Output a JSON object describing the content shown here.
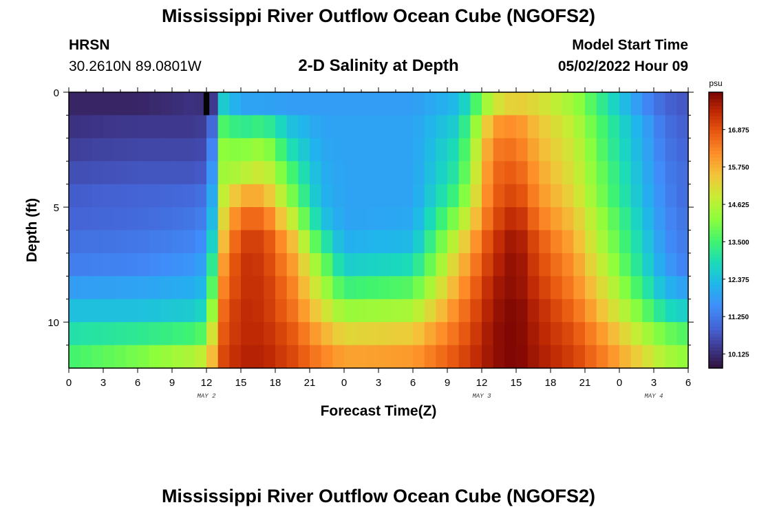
{
  "header": {
    "title": "Mississippi River Outflow Ocean Cube (NGOFS2)",
    "station": "HRSN",
    "coords": "30.2610N  89.0801W",
    "subtitle": "2-D Salinity at Depth",
    "model_start_label": "Model Start Time",
    "model_start_value": "05/02/2022 Hour 09"
  },
  "footer": {
    "title": "Mississippi River Outflow Ocean Cube (NGOFS2)"
  },
  "colors": {
    "background": "#ffffff",
    "axis": "#000000"
  },
  "chart_data": {
    "type": "heatmap",
    "title": "2-D Salinity at Depth",
    "xlabel": "Forecast Time(Z)",
    "ylabel": "Depth (ft)",
    "x_ticks": [
      "0",
      "3",
      "6",
      "9",
      "12",
      "15",
      "18",
      "21",
      "0",
      "3",
      "6",
      "9",
      "12",
      "15",
      "18",
      "21",
      "0",
      "3",
      "6"
    ],
    "x_range_hours": [
      0,
      54
    ],
    "date_labels": [
      {
        "text": "MAY 2",
        "hour": 12
      },
      {
        "text": "MAY 3",
        "hour": 36
      },
      {
        "text": "MAY 4",
        "hour": 51
      }
    ],
    "y_ticks": [
      "0",
      "5",
      "10"
    ],
    "y_range_ft": [
      0,
      12
    ],
    "colorbar": {
      "unit": "psu",
      "min": 9.7,
      "max": 18.0,
      "ticks": [
        "16.875",
        "15.750",
        "14.625",
        "13.500",
        "12.375",
        "11.250",
        "10.125"
      ]
    },
    "depth_levels_ft": [
      0.5,
      1.5,
      2.5,
      3.5,
      4.5,
      5.5,
      6.5,
      7.5,
      8.5,
      9.5,
      10.5,
      11.5
    ],
    "time_knots_hours": [
      0,
      6,
      11,
      12,
      12.5,
      13.5,
      15,
      17,
      19.5,
      22,
      24,
      30,
      34,
      37,
      39,
      41,
      44,
      47,
      50,
      52,
      54
    ],
    "salinity": [
      [
        10.0,
        10.0,
        10.2,
        10.1,
        10.3,
        12.6,
        11.9,
        11.9,
        11.8,
        11.8,
        11.8,
        11.8,
        12.3,
        14.9,
        15.4,
        15.1,
        14.4,
        13.0,
        11.6,
        10.9,
        10.7
      ],
      [
        10.2,
        10.3,
        10.3,
        10.4,
        11.0,
        13.6,
        13.2,
        13.4,
        12.4,
        11.9,
        11.9,
        11.9,
        12.7,
        16.0,
        16.2,
        15.5,
        14.7,
        13.3,
        12.0,
        11.1,
        10.8
      ],
      [
        10.4,
        10.5,
        10.5,
        10.6,
        11.4,
        14.2,
        14.1,
        14.4,
        12.9,
        12.0,
        11.9,
        11.9,
        13.0,
        16.4,
        16.5,
        15.7,
        14.9,
        13.4,
        12.1,
        11.2,
        10.9
      ],
      [
        10.6,
        10.7,
        10.7,
        10.8,
        11.7,
        14.4,
        14.6,
        15.0,
        13.5,
        12.1,
        11.9,
        11.9,
        13.2,
        16.6,
        16.8,
        15.9,
        15.0,
        13.6,
        12.2,
        11.3,
        11.0
      ],
      [
        10.8,
        10.9,
        11.0,
        11.2,
        12.0,
        14.8,
        15.8,
        15.8,
        14.0,
        12.2,
        11.9,
        11.9,
        13.6,
        16.7,
        17.1,
        16.1,
        15.2,
        13.7,
        12.3,
        11.4,
        11.0
      ],
      [
        10.9,
        11.0,
        11.2,
        11.4,
        12.3,
        15.2,
        16.6,
        16.6,
        14.8,
        12.5,
        11.9,
        12.0,
        14.3,
        16.9,
        17.5,
        16.4,
        15.5,
        14.0,
        12.5,
        11.5,
        11.1
      ],
      [
        11.1,
        11.2,
        11.4,
        11.7,
        12.7,
        15.6,
        17.1,
        17.1,
        15.6,
        13.3,
        12.1,
        12.3,
        15.0,
        17.2,
        17.8,
        16.8,
        15.8,
        14.2,
        12.7,
        11.6,
        11.2
      ],
      [
        11.3,
        11.4,
        11.7,
        12.0,
        13.2,
        16.0,
        17.3,
        17.2,
        16.0,
        14.1,
        12.6,
        12.9,
        15.5,
        17.4,
        17.9,
        17.0,
        16.1,
        14.5,
        12.9,
        11.8,
        11.3
      ],
      [
        11.8,
        11.9,
        12.1,
        12.4,
        13.7,
        16.3,
        17.3,
        17.3,
        16.3,
        14.6,
        13.4,
        13.7,
        15.9,
        17.6,
        17.9,
        17.2,
        16.3,
        14.9,
        13.3,
        12.2,
        11.8
      ],
      [
        12.4,
        12.4,
        12.6,
        12.9,
        14.3,
        16.6,
        17.4,
        17.3,
        16.5,
        15.2,
        14.3,
        14.5,
        16.3,
        17.7,
        18.0,
        17.4,
        16.6,
        15.3,
        13.9,
        12.9,
        12.6
      ],
      [
        13.0,
        13.2,
        13.5,
        13.8,
        15.0,
        16.8,
        17.4,
        17.4,
        16.8,
        15.8,
        15.2,
        15.4,
        16.6,
        17.8,
        18.0,
        17.5,
        16.9,
        15.8,
        14.6,
        13.9,
        13.6
      ],
      [
        13.5,
        14.0,
        14.6,
        14.9,
        15.6,
        17.0,
        17.5,
        17.5,
        17.0,
        16.3,
        15.9,
        16.0,
        16.9,
        17.8,
        18.0,
        17.6,
        17.1,
        16.2,
        15.2,
        14.5,
        14.2
      ]
    ],
    "anomaly_cell": {
      "hour": 12,
      "depth_ft": 0.5,
      "value": 9.6
    }
  }
}
